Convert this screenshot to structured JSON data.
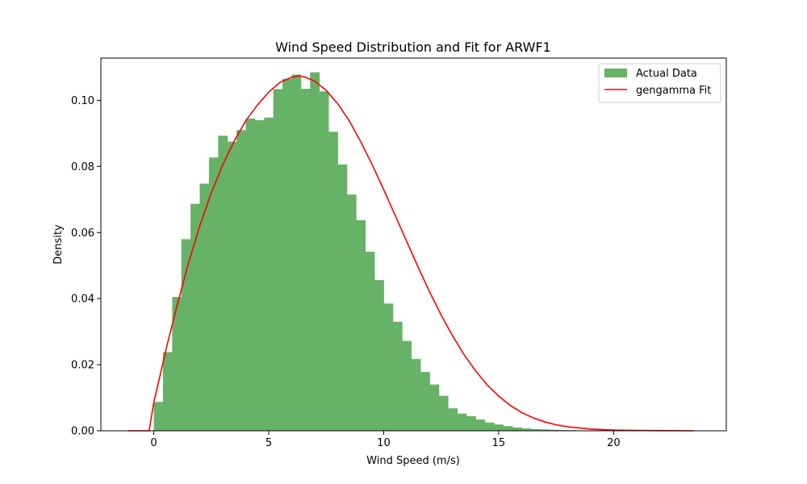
{
  "chart_data": {
    "type": "bar",
    "title": "Wind Speed Distribution and Fit for ARWF1",
    "xlabel": "Wind Speed (m/s)",
    "ylabel": "Density",
    "xlim": [
      -2.3,
      24.9
    ],
    "ylim": [
      0,
      0.1128
    ],
    "x_ticks": [
      0,
      5,
      10,
      15,
      20
    ],
    "y_ticks": [
      0.0,
      0.02,
      0.04,
      0.06,
      0.08,
      0.1
    ],
    "x_tick_labels": [
      "0",
      "5",
      "10",
      "15",
      "20"
    ],
    "y_tick_labels": [
      "0.00",
      "0.02",
      "0.04",
      "0.06",
      "0.08",
      "0.10"
    ],
    "grid": false,
    "legend_position": "top-right",
    "series": [
      {
        "name": "Actual Data",
        "kind": "histogram",
        "color": "#66b266",
        "bin_start": 0.0,
        "bin_width": 0.4,
        "values": [
          0.0087,
          0.0238,
          0.0405,
          0.058,
          0.0687,
          0.0748,
          0.0827,
          0.0893,
          0.0875,
          0.091,
          0.0945,
          0.094,
          0.0948,
          0.1034,
          0.1065,
          0.1078,
          0.1035,
          0.1085,
          0.1027,
          0.0905,
          0.0806,
          0.0715,
          0.0637,
          0.0542,
          0.0456,
          0.0385,
          0.033,
          0.0272,
          0.0217,
          0.0178,
          0.014,
          0.0106,
          0.0068,
          0.0052,
          0.0044,
          0.0034,
          0.0025,
          0.0019,
          0.0014,
          0.001,
          0.0007,
          0.0005,
          0.0004,
          0.0003,
          0.0002,
          0.0002,
          0.0001,
          0.0001,
          0.0001,
          0.0001,
          0.0001,
          0.0,
          0.0,
          0.0,
          0.0,
          0.0,
          0.0,
          0.0
        ]
      },
      {
        "name": "gengamma Fit",
        "kind": "line",
        "color": "#ff0000",
        "x": [
          -1.1,
          -0.2,
          0.0,
          0.3,
          0.6,
          1.0,
          1.5,
          2.0,
          2.5,
          3.0,
          3.5,
          4.0,
          4.5,
          5.0,
          5.5,
          6.0,
          6.3,
          6.6,
          7.0,
          7.5,
          8.0,
          8.5,
          9.0,
          9.5,
          10.0,
          10.5,
          11.0,
          11.5,
          12.0,
          12.5,
          13.0,
          13.5,
          14.0,
          14.5,
          15.0,
          15.5,
          16.0,
          16.5,
          17.0,
          17.5,
          18.0,
          19.0,
          20.0,
          21.0,
          22.0,
          23.5
        ],
        "y": [
          0.0,
          0.0,
          0.0085,
          0.0175,
          0.0265,
          0.0375,
          0.0505,
          0.062,
          0.072,
          0.0805,
          0.0877,
          0.0938,
          0.0985,
          0.1025,
          0.1055,
          0.107,
          0.1074,
          0.107,
          0.1058,
          0.103,
          0.099,
          0.0938,
          0.0875,
          0.0805,
          0.073,
          0.0652,
          0.0573,
          0.0495,
          0.042,
          0.035,
          0.0287,
          0.023,
          0.0181,
          0.0139,
          0.0105,
          0.0077,
          0.0055,
          0.0039,
          0.0027,
          0.0018,
          0.0012,
          0.0005,
          0.0002,
          0.0001,
          5e-05,
          0.0
        ]
      }
    ]
  }
}
